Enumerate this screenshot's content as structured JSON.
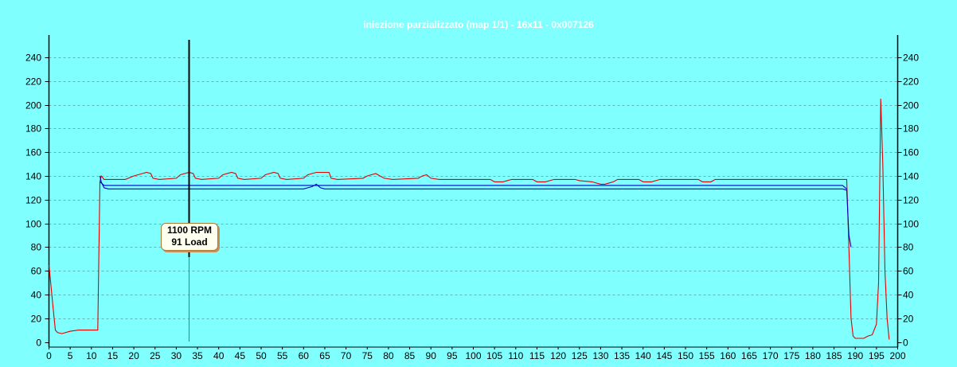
{
  "chart_data": {
    "type": "line",
    "title": "iniezione parzializzato (map 1/1) - 16x11 - 0x007126",
    "xlabel": "",
    "ylabel": "",
    "xlim": [
      0,
      200
    ],
    "ylim": [
      0,
      250
    ],
    "x_ticks": [
      0,
      5,
      10,
      15,
      20,
      25,
      30,
      35,
      40,
      45,
      50,
      55,
      60,
      65,
      70,
      75,
      80,
      85,
      90,
      95,
      100,
      105,
      110,
      115,
      120,
      125,
      130,
      135,
      140,
      145,
      150,
      155,
      160,
      165,
      170,
      175,
      180,
      185,
      190,
      195,
      200
    ],
    "y_ticks": [
      0,
      20,
      40,
      60,
      80,
      100,
      120,
      140,
      160,
      180,
      200,
      220,
      240
    ],
    "grid": "horizontal dashed",
    "colors": {
      "background": "#80FFFF",
      "red_series": "#E00000",
      "blue_series": "#0000C0",
      "cursor": "#000000"
    },
    "series": [
      {
        "color": "#E00000",
        "points": [
          [
            0,
            65
          ],
          [
            1,
            28
          ],
          [
            1.5,
            10
          ],
          [
            2,
            8
          ],
          [
            3,
            7
          ],
          [
            5,
            9
          ],
          [
            7,
            10
          ],
          [
            11.5,
            10
          ],
          [
            12,
            135
          ],
          [
            12.3,
            140
          ],
          [
            13,
            137
          ],
          [
            15,
            137
          ],
          [
            17,
            137
          ],
          [
            18,
            137
          ],
          [
            20,
            140
          ],
          [
            22,
            142
          ],
          [
            23,
            143
          ],
          [
            24,
            142
          ],
          [
            24.5,
            138
          ],
          [
            26,
            137
          ],
          [
            30,
            138
          ],
          [
            31,
            141
          ],
          [
            33,
            143
          ],
          [
            34,
            142
          ],
          [
            34.5,
            138
          ],
          [
            36,
            137
          ],
          [
            40,
            138
          ],
          [
            41,
            141
          ],
          [
            43,
            143
          ],
          [
            44,
            142
          ],
          [
            44.5,
            138
          ],
          [
            46,
            137
          ],
          [
            50,
            138
          ],
          [
            51,
            141
          ],
          [
            53,
            143
          ],
          [
            54,
            142
          ],
          [
            54.5,
            138
          ],
          [
            56,
            137
          ],
          [
            60,
            138
          ],
          [
            61,
            141
          ],
          [
            63,
            143
          ],
          [
            66,
            143
          ],
          [
            66.5,
            138
          ],
          [
            68,
            137
          ],
          [
            74,
            138
          ],
          [
            75,
            140
          ],
          [
            77,
            142
          ],
          [
            78,
            140
          ],
          [
            79,
            138
          ],
          [
            81,
            137
          ],
          [
            87,
            138
          ],
          [
            88,
            140
          ],
          [
            89,
            141
          ],
          [
            90,
            138
          ],
          [
            92,
            137
          ],
          [
            104,
            137
          ],
          [
            105,
            135
          ],
          [
            107,
            135
          ],
          [
            109,
            137
          ],
          [
            114,
            137
          ],
          [
            115,
            135
          ],
          [
            117,
            135
          ],
          [
            119,
            137
          ],
          [
            124,
            137
          ],
          [
            125,
            136
          ],
          [
            128,
            135
          ],
          [
            130,
            133
          ],
          [
            131,
            133
          ],
          [
            133,
            135
          ],
          [
            134,
            137
          ],
          [
            139,
            137
          ],
          [
            140,
            135
          ],
          [
            142,
            135
          ],
          [
            144,
            137
          ],
          [
            153,
            137
          ],
          [
            154,
            135
          ],
          [
            156,
            135
          ],
          [
            157,
            137
          ],
          [
            188,
            137
          ],
          [
            188.5,
            80
          ],
          [
            189,
            20
          ],
          [
            189.5,
            5
          ],
          [
            190,
            3
          ],
          [
            192,
            3
          ],
          [
            193,
            5
          ],
          [
            194,
            6
          ],
          [
            195,
            15
          ],
          [
            195.5,
            50
          ],
          [
            196,
            205
          ],
          [
            196.5,
            150
          ],
          [
            197,
            60
          ],
          [
            197.5,
            20
          ],
          [
            198,
            2
          ]
        ]
      },
      {
        "color": "#0000C0",
        "points": [
          [
            12,
            140
          ],
          [
            12.3,
            135
          ],
          [
            13,
            130
          ],
          [
            14,
            129
          ],
          [
            20,
            129
          ],
          [
            30,
            129
          ],
          [
            40,
            129
          ],
          [
            50,
            129
          ],
          [
            60,
            129
          ],
          [
            61,
            130
          ],
          [
            62,
            131
          ],
          [
            63,
            133
          ],
          [
            64,
            130
          ],
          [
            65,
            129
          ],
          [
            80,
            129
          ],
          [
            100,
            129
          ],
          [
            120,
            129
          ],
          [
            140,
            129
          ],
          [
            160,
            129
          ],
          [
            180,
            129
          ],
          [
            187,
            129
          ],
          [
            188,
            128
          ],
          [
            188.5,
            90
          ],
          [
            189,
            80
          ]
        ]
      },
      {
        "color": "#0000C0",
        "points": [
          [
            12,
            135
          ],
          [
            13,
            132
          ],
          [
            14,
            132
          ],
          [
            30,
            132
          ],
          [
            60,
            132
          ],
          [
            100,
            132
          ],
          [
            140,
            132
          ],
          [
            180,
            132
          ],
          [
            186,
            132
          ],
          [
            187,
            132
          ],
          [
            188,
            129
          ]
        ]
      }
    ],
    "cursor": {
      "x": 33,
      "rpm_label": "1100 RPM",
      "load_label": "91 Load"
    }
  }
}
